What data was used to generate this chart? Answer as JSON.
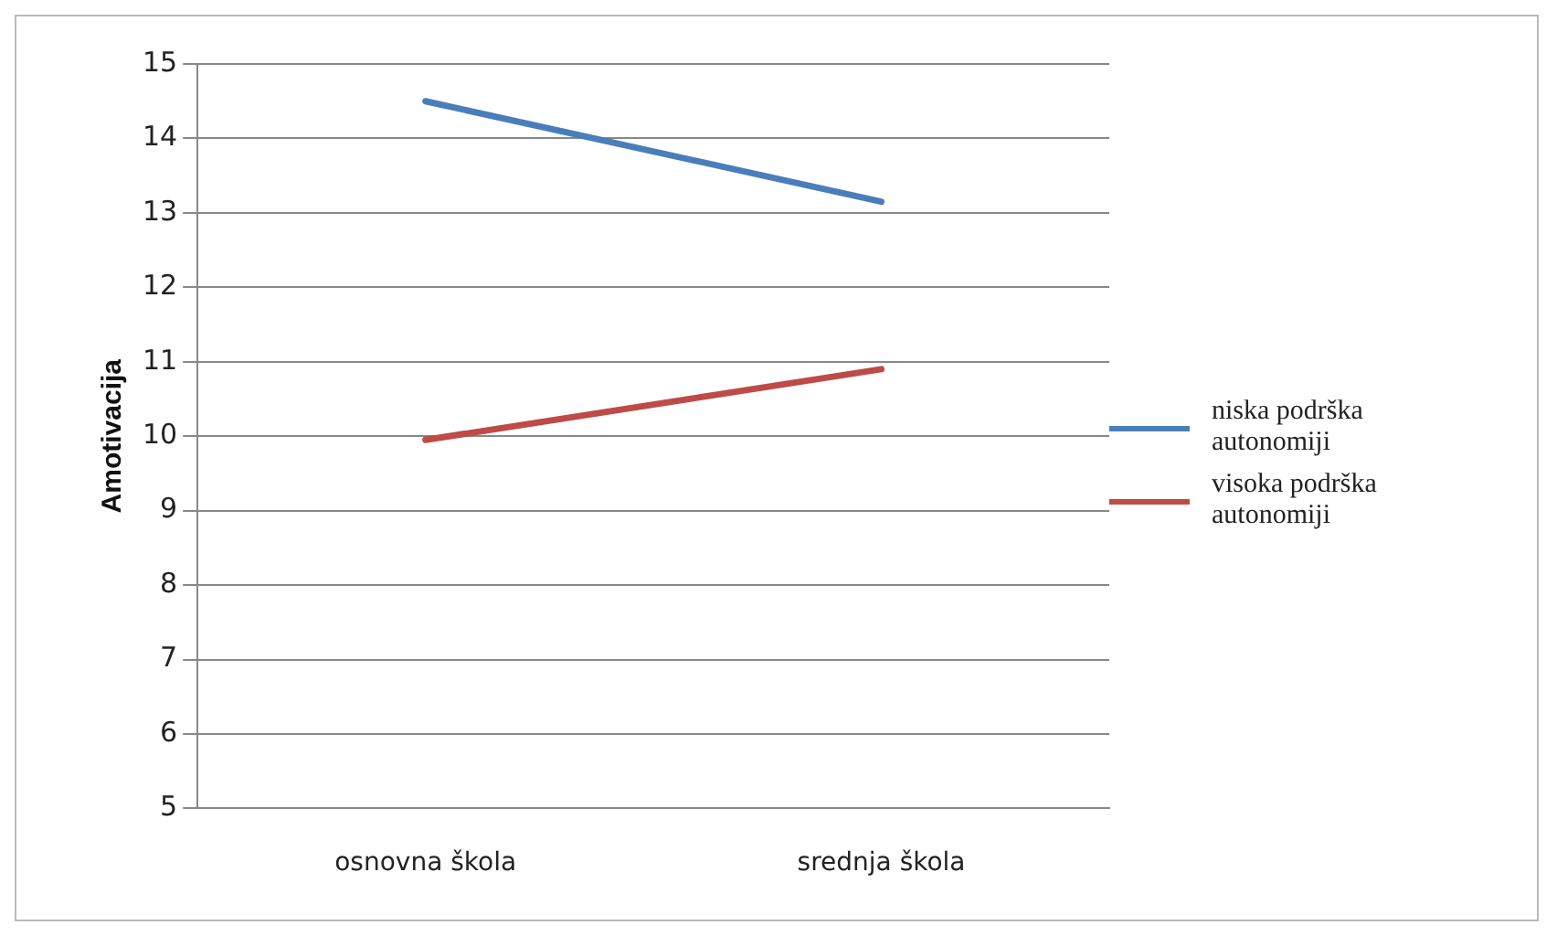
{
  "chart_data": {
    "type": "line",
    "ylabel": "Amotivacija",
    "categories": [
      "osnovna škola",
      "srednja škola"
    ],
    "series": [
      {
        "name": "niska podrška autonomiji",
        "color": "#4a7ebb",
        "values": [
          14.5,
          13.15
        ]
      },
      {
        "name": "visoka podrška autonomiji",
        "color": "#be4b48",
        "values": [
          9.95,
          10.9
        ]
      }
    ],
    "ylim": [
      5,
      15
    ],
    "yticks": [
      5,
      6,
      7,
      8,
      9,
      10,
      11,
      12,
      13,
      14,
      15
    ],
    "grid": "y",
    "legend": "right",
    "marker": "none",
    "line_style": "solid"
  }
}
